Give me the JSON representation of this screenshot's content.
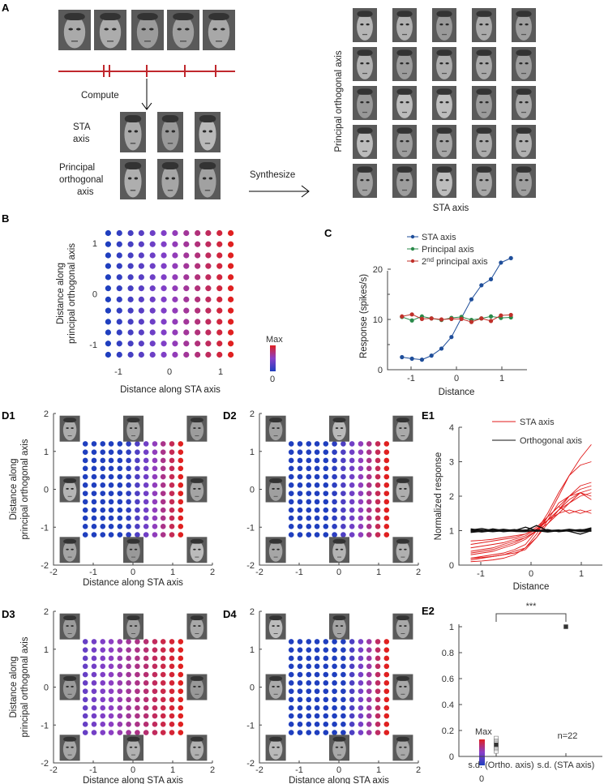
{
  "panel_labels": {
    "A": "A",
    "B": "B",
    "C": "C",
    "D1": "D1",
    "D2": "D2",
    "D3": "D3",
    "D4": "D4",
    "E1": "E1",
    "E2": "E2"
  },
  "panel_a": {
    "compute_label": "Compute",
    "sta_axis_label": "STA",
    "sta_axis_label2": "axis",
    "principal_label": [
      "Principal",
      "orthogonal",
      "axis"
    ],
    "synthesize_label": "Synthesize",
    "grid_y_label": "Principal orthogonal axis",
    "grid_x_label": "STA axis",
    "spike_color": "#c0282d"
  },
  "colorbar": {
    "max_label": "Max",
    "min_label": "0",
    "colors": [
      "#1f3fbf",
      "#8a3fc8",
      "#e02020"
    ]
  },
  "chart_data": [
    {
      "id": "B",
      "type": "scatter",
      "xlabel": "Distance along STA axis",
      "ylabel": [
        "Distance along",
        "principal orthogonal axis"
      ],
      "grid_values": [
        -1.2,
        -0.98,
        -0.76,
        -0.55,
        -0.33,
        -0.11,
        0.11,
        0.33,
        0.55,
        0.76,
        0.98,
        1.2
      ],
      "xticks": [
        "-1",
        "0",
        "1"
      ],
      "yticks": [
        "-1",
        "0",
        "1"
      ],
      "xlim": [
        -1.4,
        1.4
      ],
      "ylim": [
        -1.4,
        1.4
      ],
      "color_range_x": [
        -1.2,
        1.2
      ]
    },
    {
      "id": "C",
      "type": "line",
      "xlabel": "Distance",
      "ylabel": "Response (spikes/s)",
      "x": [
        -1.2,
        -0.98,
        -0.76,
        -0.55,
        -0.33,
        -0.11,
        0.11,
        0.33,
        0.55,
        0.76,
        0.98,
        1.2
      ],
      "xlim": [
        -1.5,
        1.5
      ],
      "ylim": [
        0,
        25
      ],
      "xticks": [
        "-1",
        "0",
        "1"
      ],
      "yticks": [
        "0",
        "10",
        "20"
      ],
      "legend": "top",
      "series": [
        {
          "name": "STA axis",
          "color": "#1f4e9a",
          "values": [
            2.5,
            2.2,
            2.0,
            2.8,
            4.2,
            6.5,
            10.3,
            14.0,
            16.8,
            18.0,
            21.3,
            22.2
          ]
        },
        {
          "name": "Principal axis",
          "color": "#2a8a4a",
          "values": [
            10.5,
            9.8,
            10.6,
            10.2,
            9.9,
            10.3,
            10.5,
            9.9,
            10.2,
            10.6,
            10.3,
            10.4
          ]
        },
        {
          "name_prefix": "2",
          "name_sup": "nd",
          "name": " principal axis",
          "color": "#c0302a",
          "values": [
            10.6,
            11.0,
            10.1,
            10.2,
            10.0,
            10.1,
            10.1,
            9.5,
            10.2,
            9.7,
            10.8,
            10.9
          ]
        }
      ]
    },
    {
      "id": "D1",
      "type": "scatter",
      "xlabel": "Distance along STA axis",
      "ylabel": [
        "Distance along",
        "principal orthogonal axis"
      ],
      "xlim": [
        -2,
        2
      ],
      "ylim": [
        -2,
        2
      ],
      "xticks": [
        "-2",
        "-1",
        "0",
        "1",
        "2"
      ],
      "yticks": [
        "-2",
        "-1",
        "0",
        "1",
        "2"
      ],
      "color_range_x": [
        -0.2,
        1.2
      ]
    },
    {
      "id": "D2",
      "type": "scatter",
      "xlabel": "",
      "ylabel": [],
      "xlim": [
        -2,
        2
      ],
      "ylim": [
        -2,
        2
      ],
      "xticks": [
        "-2",
        "-1",
        "0",
        "1",
        "2"
      ],
      "yticks": [
        "-2",
        "-1",
        "0",
        "1",
        "2"
      ],
      "color_range_x": [
        -0.2,
        1.2
      ]
    },
    {
      "id": "D3",
      "type": "scatter",
      "xlabel": "Distance along STA axis",
      "ylabel": [
        "Distance along",
        "principal orthogonal axis"
      ],
      "xlim": [
        -2,
        2
      ],
      "ylim": [
        -2,
        2
      ],
      "xticks": [
        "-2",
        "-1",
        "0",
        "1",
        "2"
      ],
      "yticks": [
        "-2",
        "-1",
        "0",
        "1",
        "2"
      ],
      "color_range_x": [
        -2.4,
        1.2
      ]
    },
    {
      "id": "D4",
      "type": "scatter",
      "xlabel": "Distance along STA axis",
      "ylabel": [],
      "xlim": [
        -2,
        2
      ],
      "ylim": [
        -2,
        2
      ],
      "xticks": [
        "-2",
        "-1",
        "0",
        "1",
        "2"
      ],
      "yticks": [
        "-2",
        "-1",
        "0",
        "1",
        "2"
      ],
      "color_range_x": [
        0.1,
        1.2
      ]
    },
    {
      "id": "E1",
      "type": "line",
      "xlabel": "Distance",
      "ylabel": "Normalized response",
      "xlim": [
        -1.4,
        1.4
      ],
      "ylim": [
        0,
        4
      ],
      "xticks": [
        "-1",
        "0",
        "1"
      ],
      "yticks": [
        "0",
        "1",
        "2",
        "3",
        "4"
      ],
      "x": [
        -1.2,
        -0.98,
        -0.76,
        -0.55,
        -0.33,
        -0.11,
        0.11,
        0.33,
        0.55,
        0.76,
        0.98,
        1.2
      ],
      "legend": "top-right",
      "series": [
        {
          "name": "STA axis",
          "color": "#e01a1a",
          "curves": [
            [
              0.1,
              0.12,
              0.15,
              0.2,
              0.3,
              0.5,
              0.9,
              1.4,
              2.0,
              2.6,
              3.1,
              3.5
            ],
            [
              0.2,
              0.25,
              0.3,
              0.35,
              0.45,
              0.6,
              1.0,
              1.5,
              2.1,
              2.6,
              2.9,
              3.0
            ],
            [
              0.4,
              0.45,
              0.5,
              0.6,
              0.7,
              0.8,
              1.0,
              1.3,
              1.6,
              1.9,
              2.1,
              2.2
            ],
            [
              0.5,
              0.55,
              0.6,
              0.65,
              0.75,
              0.85,
              1.05,
              1.3,
              1.6,
              1.8,
              2.0,
              2.1
            ],
            [
              0.3,
              0.35,
              0.4,
              0.5,
              0.6,
              0.75,
              1.0,
              1.4,
              1.7,
              2.0,
              2.2,
              2.3
            ],
            [
              0.6,
              0.65,
              0.7,
              0.75,
              0.8,
              0.9,
              1.05,
              1.3,
              1.5,
              1.6,
              1.5,
              1.6
            ],
            [
              0.2,
              0.22,
              0.25,
              0.3,
              0.35,
              0.45,
              0.8,
              1.3,
              1.8,
              2.0,
              2.1,
              2.0
            ],
            [
              0.7,
              0.72,
              0.75,
              0.8,
              0.85,
              0.9,
              1.1,
              1.4,
              1.7,
              1.5,
              1.6,
              1.5
            ],
            [
              0.35,
              0.4,
              0.45,
              0.55,
              0.65,
              0.8,
              1.0,
              1.2,
              1.5,
              1.8,
              2.1,
              1.9
            ],
            [
              0.15,
              0.2,
              0.25,
              0.3,
              0.4,
              0.5,
              0.8,
              1.2,
              1.6,
              2.0,
              2.3,
              2.4
            ]
          ]
        },
        {
          "name": "Orthogonal axis",
          "color": "#111111",
          "curves": [
            [
              1.0,
              1.02,
              0.98,
              1.0,
              1.03,
              1.0,
              0.98,
              1.0,
              1.01,
              0.99,
              1.02,
              1.05
            ],
            [
              1.05,
              1.0,
              1.02,
              0.97,
              1.0,
              1.1,
              1.0,
              0.96,
              1.0,
              1.02,
              0.97,
              1.0
            ],
            [
              0.95,
              0.98,
              1.05,
              1.0,
              0.98,
              0.97,
              1.02,
              1.0,
              0.98,
              1.0,
              1.03,
              0.98
            ],
            [
              1.02,
              1.06,
              1.0,
              1.02,
              0.99,
              1.0,
              1.15,
              1.0,
              1.02,
              0.98,
              0.9,
              1.0
            ],
            [
              0.98,
              1.0,
              0.97,
              1.0,
              1.02,
              1.0,
              0.99,
              1.03,
              0.97,
              1.0,
              1.0,
              1.08
            ],
            [
              1.0,
              0.96,
              1.0,
              1.04,
              1.0,
              1.02,
              1.0,
              0.98,
              1.0,
              1.04,
              1.0,
              1.02
            ]
          ]
        }
      ]
    },
    {
      "id": "E2",
      "type": "scatter",
      "categories": [
        "s.d. (Ortho. axis)",
        "s.d. (STA axis)"
      ],
      "ylim": [
        0,
        1
      ],
      "yticks": [
        "0",
        "0.2",
        "0.4",
        "0.6",
        "0.8",
        "1"
      ],
      "points": [
        [
          0.04,
          0.06,
          0.07,
          0.08,
          0.09,
          0.1,
          0.11,
          0.12,
          0.14
        ],
        [
          1.0
        ]
      ],
      "means": [
        0.09,
        1.0
      ],
      "significance": "***",
      "n_label": "n=22"
    }
  ]
}
